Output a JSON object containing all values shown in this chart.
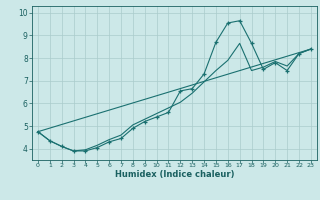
{
  "title": "",
  "xlabel": "Humidex (Indice chaleur)",
  "bg_color": "#cce8e8",
  "grid_color": "#aacccc",
  "line_color": "#1a7070",
  "tick_color": "#1a6060",
  "xlim": [
    -0.5,
    23.5
  ],
  "ylim": [
    3.5,
    10.3
  ],
  "xticks": [
    0,
    1,
    2,
    3,
    4,
    5,
    6,
    7,
    8,
    9,
    10,
    11,
    12,
    13,
    14,
    15,
    16,
    17,
    18,
    19,
    20,
    21,
    22,
    23
  ],
  "yticks": [
    4,
    5,
    6,
    7,
    8,
    9,
    10
  ],
  "line1_x": [
    0,
    1,
    2,
    3,
    4,
    5,
    6,
    7,
    8,
    9,
    10,
    11,
    12,
    13,
    14,
    15,
    16,
    17,
    18,
    19,
    20,
    21,
    22,
    23
  ],
  "line1_y": [
    4.75,
    4.35,
    4.1,
    3.9,
    3.9,
    4.05,
    4.3,
    4.45,
    4.9,
    5.2,
    5.4,
    5.6,
    6.55,
    6.65,
    7.3,
    8.7,
    9.55,
    9.65,
    8.65,
    7.5,
    7.8,
    7.45,
    8.2,
    8.4
  ],
  "line2_x": [
    0,
    1,
    2,
    3,
    4,
    5,
    6,
    7,
    8,
    9,
    10,
    11,
    12,
    13,
    14,
    15,
    16,
    17,
    18,
    19,
    20,
    21,
    22,
    23
  ],
  "line2_y": [
    4.75,
    4.35,
    4.1,
    3.9,
    3.95,
    4.15,
    4.4,
    4.6,
    5.05,
    5.3,
    5.55,
    5.8,
    6.05,
    6.45,
    6.95,
    7.45,
    7.9,
    8.65,
    7.45,
    7.6,
    7.85,
    7.65,
    8.2,
    8.4
  ],
  "line3_x": [
    0,
    23
  ],
  "line3_y": [
    4.75,
    8.4
  ]
}
